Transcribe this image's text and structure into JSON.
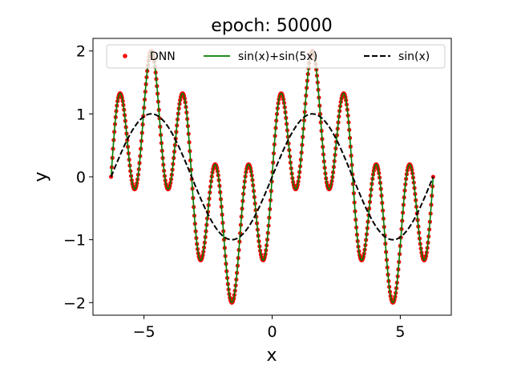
{
  "chart_data": {
    "type": "line",
    "title": "epoch: 50000",
    "xlabel": "x",
    "ylabel": "y",
    "xlim": [
      -6.99,
      6.99
    ],
    "ylim": [
      -2.2,
      2.2
    ],
    "xticks": [
      -5,
      0,
      5
    ],
    "xtick_labels": [
      "−5",
      "0",
      "5"
    ],
    "yticks": [
      -2,
      -1,
      0,
      1,
      2
    ],
    "ytick_labels": [
      "−2",
      "−1",
      "0",
      "1",
      "2"
    ],
    "grid": false,
    "legend_placement": "top",
    "series": [
      {
        "name": "DNN",
        "style": "points",
        "color": "#ff0000",
        "function": "sin(x)+sin(5x)",
        "x_range": [
          -6.283,
          6.283
        ],
        "num_points": 500
      },
      {
        "name": "sin(x)+sin(5x)",
        "style": "solid",
        "color": "#008000",
        "function": "sin(x)+sin(5x)",
        "x_range": [
          -6.283,
          6.283
        ]
      },
      {
        "name": "sin(x)",
        "style": "dashed",
        "color": "#000000",
        "function": "sin(x)",
        "x_range": [
          -6.283,
          6.283
        ]
      }
    ]
  }
}
